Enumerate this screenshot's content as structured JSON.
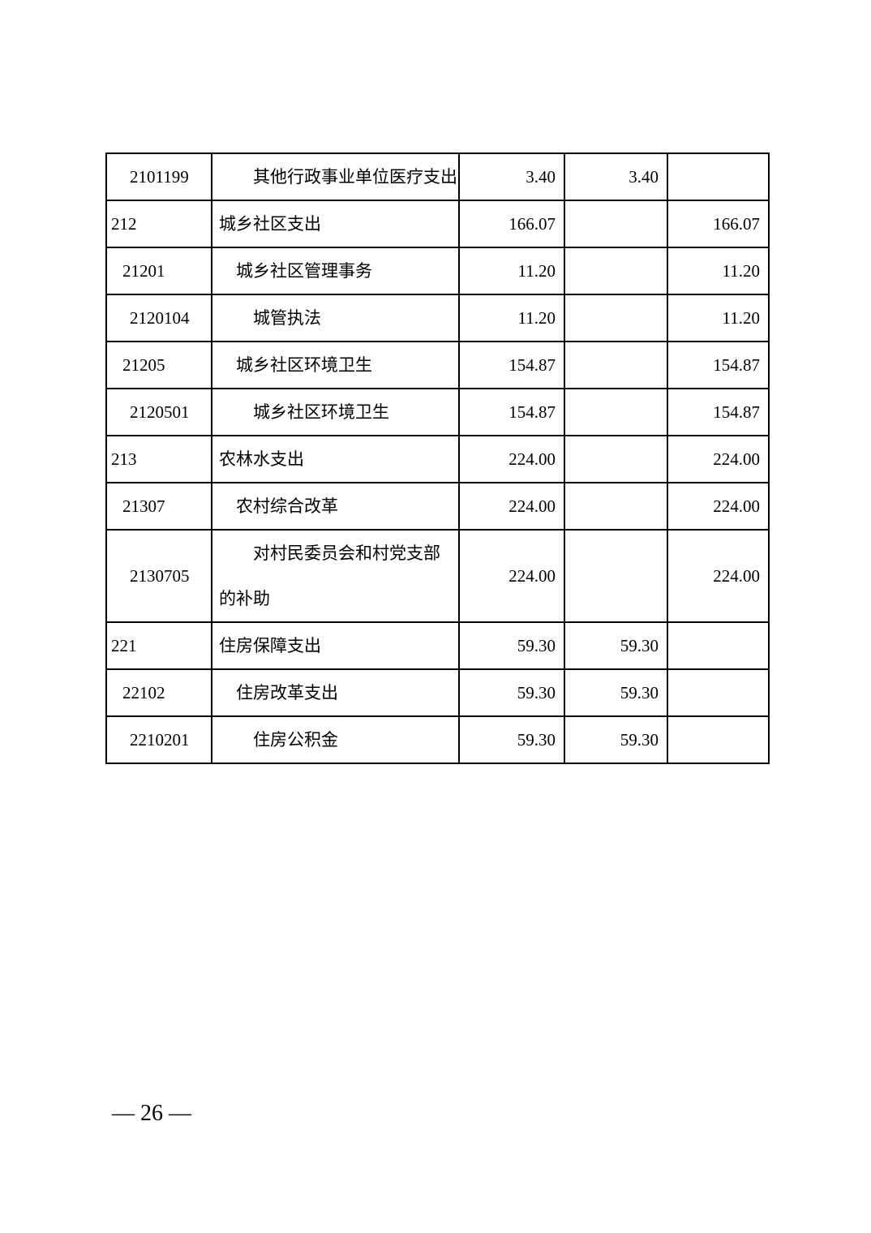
{
  "page": {
    "footer": "— 26 —"
  },
  "table": {
    "description": "budget-expenditure-table-continuation",
    "columns": [
      "code",
      "name",
      "value-1",
      "value-2",
      "value-3"
    ],
    "rows": [
      {
        "code": "2101199",
        "level": 3,
        "name": "其他行政事业单位医疗支出",
        "values": [
          "3.40",
          "3.40",
          ""
        ]
      },
      {
        "code": "212",
        "level": 1,
        "name": "城乡社区支出",
        "values": [
          "166.07",
          "",
          "166.07"
        ]
      },
      {
        "code": "21201",
        "level": 2,
        "name": "城乡社区管理事务",
        "values": [
          "11.20",
          "",
          "11.20"
        ]
      },
      {
        "code": "2120104",
        "level": 3,
        "name": "城管执法",
        "values": [
          "11.20",
          "",
          "11.20"
        ]
      },
      {
        "code": "21205",
        "level": 2,
        "name": "城乡社区环境卫生",
        "values": [
          "154.87",
          "",
          "154.87"
        ]
      },
      {
        "code": "2120501",
        "level": 3,
        "name": "城乡社区环境卫生",
        "values": [
          "154.87",
          "",
          "154.87"
        ]
      },
      {
        "code": "213",
        "level": 1,
        "name": "农林水支出",
        "values": [
          "224.00",
          "",
          "224.00"
        ]
      },
      {
        "code": "21307",
        "level": 2,
        "name": "农村综合改革",
        "values": [
          "224.00",
          "",
          "224.00"
        ]
      },
      {
        "code": "2130705",
        "level": 3,
        "name": "对村民委员会和村党支部的补助",
        "values": [
          "224.00",
          "",
          "224.00"
        ]
      },
      {
        "code": "221",
        "level": 1,
        "name": "住房保障支出",
        "values": [
          "59.30",
          "59.30",
          ""
        ]
      },
      {
        "code": "22102",
        "level": 2,
        "name": "住房改革支出",
        "values": [
          "59.30",
          "59.30",
          ""
        ]
      },
      {
        "code": "2210201",
        "level": 3,
        "name": "住房公积金",
        "values": [
          "59.30",
          "59.30",
          ""
        ]
      }
    ],
    "colors": {
      "border": "#000000",
      "text": "#000000",
      "background": "#ffffff"
    }
  }
}
